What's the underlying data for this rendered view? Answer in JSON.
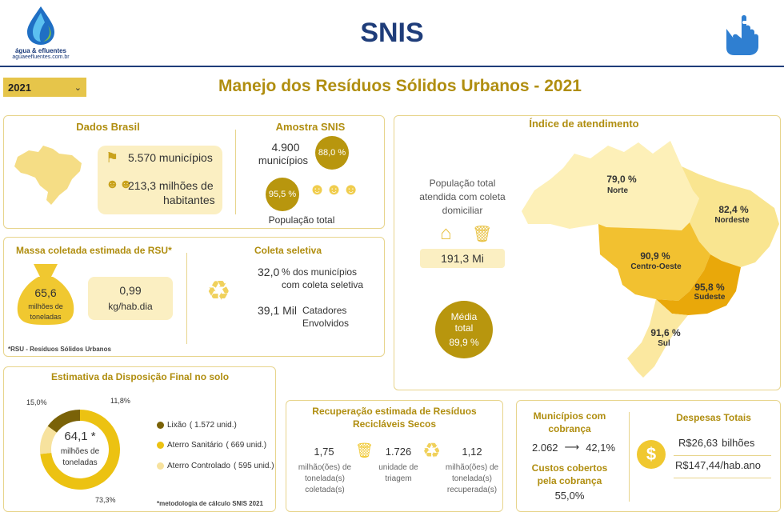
{
  "header": {
    "logo_line1": "água & efluentes",
    "logo_line2": "aguaeefluentes.com.br",
    "title": "SNIS"
  },
  "filter": {
    "year": "2021"
  },
  "page_title": "Manejo dos Resíduos Sólidos Urbanos - 2021",
  "dados_brasil": {
    "title": "Dados Brasil",
    "municipios": "5.570 municípios",
    "habitantes_line1": "213,3 milhões de",
    "habitantes_line2": "habitantes"
  },
  "amostra": {
    "title": "Amostra SNIS",
    "municipios_value": "4.900",
    "municipios_label": "municípios",
    "municipios_pct": "88,0 %",
    "populacao_pct": "95,5 %",
    "populacao_label": "População total"
  },
  "indice": {
    "title": "Índice de atendimento",
    "pop_line1": "População total",
    "pop_line2": "atendida com coleta",
    "pop_line3": "domiciliar",
    "pop_value": "191,3 Mi",
    "media_line1": "Média",
    "media_line2": "total",
    "media_value": "89,9 %",
    "regions": [
      {
        "name": "Norte",
        "value": "79,0 %"
      },
      {
        "name": "Nordeste",
        "value": "82,4 %"
      },
      {
        "name": "Centro-Oeste",
        "value": "90,9 %"
      },
      {
        "name": "Sudeste",
        "value": "95,8 %"
      },
      {
        "name": "Sul",
        "value": "91,6 %"
      }
    ]
  },
  "massa": {
    "title": "Massa coletada estimada de RSU*",
    "value": "65,6",
    "unit_line1": "milhões de",
    "unit_line2": "toneladas",
    "per_cap_value": "0,99",
    "per_cap_unit": "kg/hab.dia",
    "footnote": "*RSU - Resíduos Sólidos Urbanos"
  },
  "coleta": {
    "title": "Coleta seletiva",
    "pct_value": "32,0",
    "pct_line1": "% dos municípios",
    "pct_line2": "com coleta seletiva",
    "catadores_value": "39,1 Mil",
    "catadores_line1": "Catadores",
    "catadores_line2": "Envolvidos"
  },
  "disposicao": {
    "title": "Estimativa da Disposição Final no solo",
    "center_value": "64,1 *",
    "center_line1": "milhões de",
    "center_line2": "toneladas",
    "lbl_lixao_pct": "15,0%",
    "lbl_controlado_pct": "11,8%",
    "lbl_sanitario_pct": "73,3%",
    "legend": [
      {
        "label": "Lixão",
        "detail": "( 1.572 unid.)",
        "color": "#7a6208"
      },
      {
        "label": "Aterro Sanitário",
        "detail": "( 669 unid.)",
        "color": "#ecc212"
      },
      {
        "label": "Aterro Controlado",
        "detail": "( 595 unid.)",
        "color": "#f7e29e"
      }
    ],
    "footnote": "*metodologia de cálculo SNIS 2021"
  },
  "chart_data": {
    "type": "pie",
    "categories": [
      "Lixão",
      "Aterro Sanitário",
      "Aterro Controlado"
    ],
    "values": [
      15.0,
      73.3,
      11.8
    ],
    "colors": [
      "#7a6208",
      "#ecc212",
      "#f7e29e"
    ]
  },
  "recuperacao": {
    "title_line1": "Recuperação estimada de Resíduos",
    "title_line2": "Recicláveis Secos",
    "col1_value": "1,75",
    "col1_line1": "milhão(ões) de",
    "col1_line2": "tonelada(s)",
    "col1_line3": "coletada(s)",
    "col2_value": "1.726",
    "col2_line1": "unidade de",
    "col2_line2": "triagem",
    "col3_value": "1,12",
    "col3_line1": "milhão(ões) de",
    "col3_line2": "tonelada(s)",
    "col3_line3": "recuperada(s)"
  },
  "cobranca": {
    "title_line1": "Municípios com",
    "title_line2": "cobrança",
    "count": "2.062",
    "arrow": "⟶",
    "pct": "42,1%",
    "custos_line1": "Custos cobertos",
    "custos_line2": "pela cobrança",
    "custos_value": "55,0%"
  },
  "despesas": {
    "title": "Despesas Totais",
    "total_value": "R$26,63",
    "total_unit": "bilhões",
    "per_hab_value": "R$147,44",
    "per_hab_unit": "/hab.ano"
  }
}
